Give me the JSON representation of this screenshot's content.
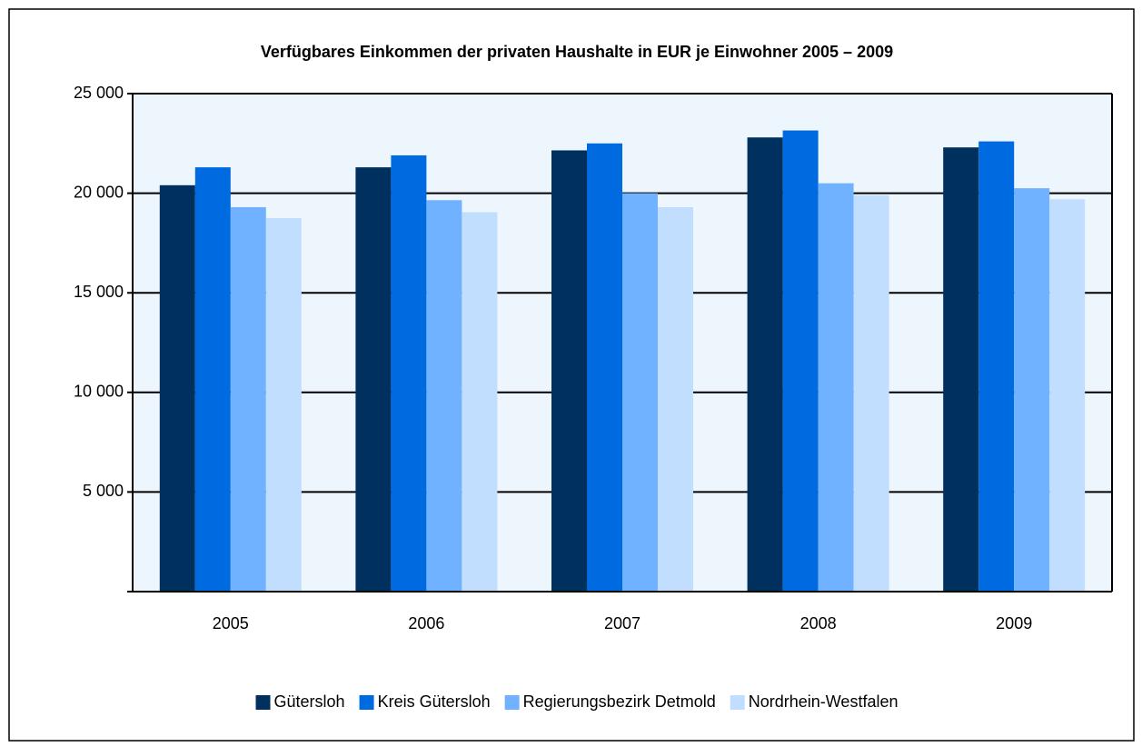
{
  "chart_data": {
    "type": "bar",
    "title": "Verfügbares Einkommen der privaten Haushalte in EUR je Einwohner 2005 – 2009",
    "categories": [
      "2005",
      "2006",
      "2007",
      "2008",
      "2009"
    ],
    "series": [
      {
        "name": "Gütersloh",
        "color": "#00305e",
        "values": [
          20400,
          21300,
          22150,
          22800,
          22300
        ]
      },
      {
        "name": "Kreis Gütersloh",
        "color": "#006ae0",
        "values": [
          21300,
          21900,
          22500,
          23150,
          22600
        ]
      },
      {
        "name": "Regierungsbezirk Detmold",
        "color": "#70b2ff",
        "values": [
          19300,
          19650,
          20000,
          20500,
          20250
        ]
      },
      {
        "name": "Nordrhein-Westfalen",
        "color": "#c2deff",
        "values": [
          18750,
          19050,
          19300,
          19900,
          19700
        ]
      }
    ],
    "ylim": [
      0,
      25000
    ],
    "yticks": [
      {
        "value": 5000,
        "label": "5 000"
      },
      {
        "value": 10000,
        "label": "10 000"
      },
      {
        "value": 15000,
        "label": "15 000"
      },
      {
        "value": 20000,
        "label": "20 000"
      },
      {
        "value": 25000,
        "label": "25 000"
      }
    ],
    "grid": true,
    "legend": "bottom"
  }
}
